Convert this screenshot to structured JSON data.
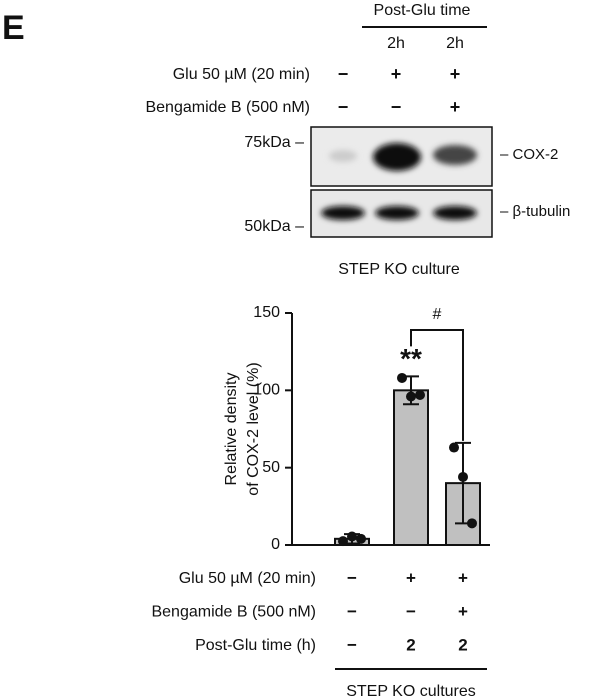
{
  "panel_label": "E",
  "blot": {
    "time_title": "Post-Glu time",
    "times": [
      "2h",
      "2h"
    ],
    "conditions": [
      {
        "label": "Glu 50 µM (20 min)",
        "values": [
          "−",
          "+",
          "+"
        ]
      },
      {
        "label": "Bengamide B (500 nM)",
        "values": [
          "−",
          "−",
          "+"
        ]
      }
    ],
    "markers": [
      "75kDa –",
      "50kDa –"
    ],
    "targets": [
      "– COX-2",
      "– β-tubulin"
    ],
    "caption": "STEP KO culture"
  },
  "chart_data": {
    "type": "bar",
    "y_label": [
      "Relative density",
      "of COX-2 level (%)"
    ],
    "values": [
      4,
      100,
      40
    ],
    "errors": [
      3,
      9,
      26
    ],
    "points": [
      [
        2.5,
        5.5,
        4
      ],
      [
        108,
        96,
        97
      ],
      [
        63,
        44,
        14
      ]
    ],
    "color": "#c0c0c0",
    "ylim": [
      0,
      150
    ],
    "yticks": [
      0,
      50,
      100,
      150
    ],
    "annotations": [
      "**",
      "#"
    ],
    "conditions": [
      {
        "label": "Glu 50 µM (20 min)",
        "values": [
          "−",
          "+",
          "+"
        ]
      },
      {
        "label": "Bengamide B (500 nM)",
        "values": [
          "−",
          "−",
          "+"
        ]
      },
      {
        "label": "Post-Glu time (h)",
        "values": [
          "−",
          "2",
          "2"
        ]
      }
    ],
    "footer": "STEP KO cultures"
  }
}
